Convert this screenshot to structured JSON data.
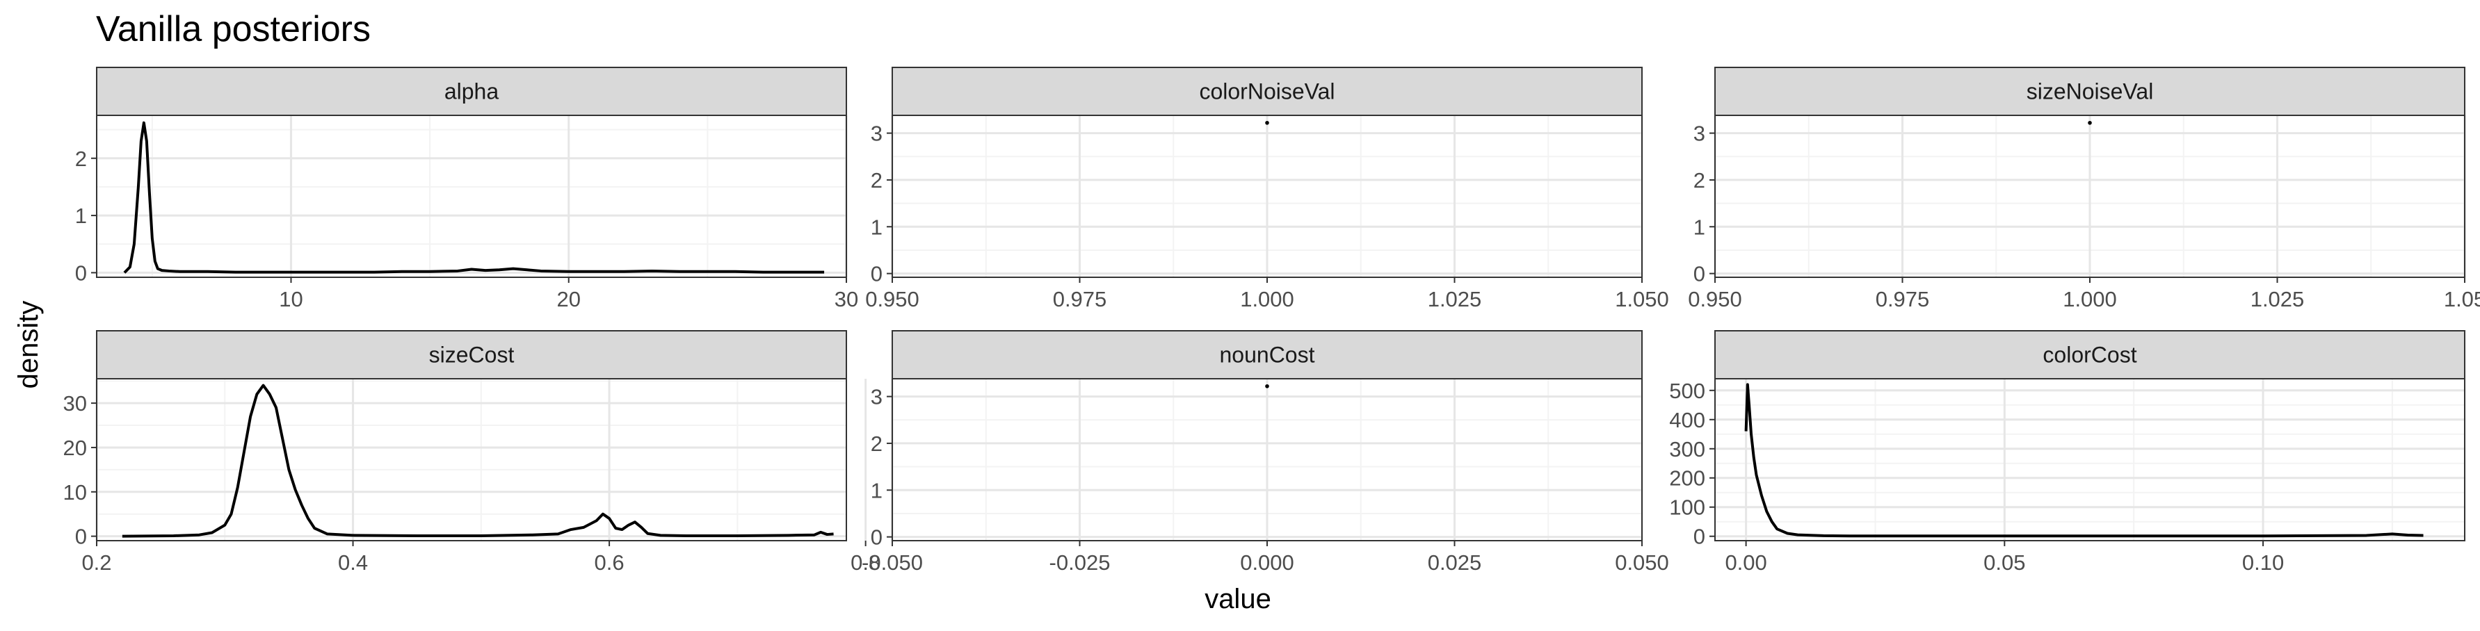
{
  "chart_data": {
    "type": "line",
    "title": "Vanilla posteriors",
    "xlabel": "value",
    "ylabel": "density",
    "grid": true,
    "legend": "none",
    "colors": {
      "line": "#000000",
      "strip_fill": "#d9d9d9",
      "strip_border": "#333333",
      "grid_major": "#e6e6e6",
      "grid_minor": "#f3f3f3"
    },
    "panels": [
      {
        "label": "alpha",
        "xlim": [
          3.0,
          30.0
        ],
        "ylim": [
          -0.08,
          2.75
        ],
        "xticks": [
          10,
          20,
          30
        ],
        "xtick_labels": [
          "10",
          "20",
          "30"
        ],
        "yticks": [
          0,
          1,
          2
        ],
        "ytick_labels": [
          "0",
          "1",
          "2"
        ],
        "series": [
          {
            "x": [
              4.0,
              4.2,
              4.35,
              4.5,
              4.6,
              4.7,
              4.8,
              4.9,
              5.0,
              5.1,
              5.2,
              5.35,
              5.6,
              6.0,
              7.0,
              8.0,
              9.0,
              10.0,
              11.0,
              12.0,
              13.0,
              14.0,
              15.0,
              16.0,
              16.5,
              17.0,
              17.5,
              18.0,
              18.5,
              19.0,
              20.0,
              21.0,
              22.0,
              23.0,
              24.0,
              25.0,
              26.0,
              27.0,
              28.0,
              29.0,
              29.2
            ],
            "y": [
              0.0,
              0.1,
              0.5,
              1.5,
              2.3,
              2.62,
              2.3,
              1.4,
              0.6,
              0.2,
              0.07,
              0.04,
              0.03,
              0.02,
              0.02,
              0.01,
              0.01,
              0.01,
              0.01,
              0.01,
              0.01,
              0.02,
              0.02,
              0.03,
              0.06,
              0.04,
              0.05,
              0.07,
              0.05,
              0.03,
              0.02,
              0.02,
              0.02,
              0.03,
              0.02,
              0.02,
              0.02,
              0.01,
              0.01,
              0.01,
              0.01
            ]
          }
        ]
      },
      {
        "label": "colorNoiseVal",
        "xlim": [
          0.95,
          1.05
        ],
        "ylim": [
          -0.08,
          3.38
        ],
        "xticks": [
          0.95,
          0.975,
          1.0,
          1.025,
          1.05
        ],
        "xtick_labels": [
          "0.950",
          "0.975",
          "1.000",
          "1.025",
          "1.050"
        ],
        "yticks": [
          0,
          1,
          2,
          3
        ],
        "ytick_labels": [
          "0",
          "1",
          "2",
          "3"
        ],
        "points": [
          {
            "x": 1.0,
            "y": 3.22
          }
        ]
      },
      {
        "label": "sizeNoiseVal",
        "xlim": [
          0.95,
          1.05
        ],
        "ylim": [
          -0.08,
          3.38
        ],
        "xticks": [
          0.95,
          0.975,
          1.0,
          1.025,
          1.05
        ],
        "xtick_labels": [
          "0.950",
          "0.975",
          "1.000",
          "1.025",
          "1.05"
        ],
        "yticks": [
          0,
          1,
          2,
          3
        ],
        "ytick_labels": [
          "0",
          "1",
          "2",
          "3"
        ],
        "points": [
          {
            "x": 1.0,
            "y": 3.22
          }
        ]
      },
      {
        "label": "sizeCost",
        "xlim": [
          0.2,
          0.785
        ],
        "ylim": [
          -1.0,
          35.5
        ],
        "xticks": [
          0.2,
          0.4,
          0.6,
          0.8
        ],
        "xtick_labels": [
          "0.2",
          "0.4",
          "0.6",
          "0.8"
        ],
        "yticks": [
          0,
          10,
          20,
          30
        ],
        "ytick_labels": [
          "0",
          "10",
          "20",
          "30"
        ],
        "series": [
          {
            "x": [
              0.22,
              0.26,
              0.28,
              0.29,
              0.3,
              0.305,
              0.31,
              0.315,
              0.32,
              0.325,
              0.33,
              0.335,
              0.34,
              0.345,
              0.35,
              0.355,
              0.36,
              0.365,
              0.37,
              0.38,
              0.4,
              0.45,
              0.5,
              0.54,
              0.56,
              0.57,
              0.58,
              0.59,
              0.595,
              0.6,
              0.605,
              0.61,
              0.615,
              0.62,
              0.625,
              0.63,
              0.64,
              0.66,
              0.7,
              0.74,
              0.76,
              0.765,
              0.77,
              0.775
            ],
            "y": [
              0.0,
              0.1,
              0.3,
              0.8,
              2.5,
              5.0,
              11.0,
              19.0,
              27.0,
              32.0,
              34.0,
              32.0,
              29.0,
              22.0,
              15.0,
              10.5,
              7.0,
              4.0,
              1.8,
              0.5,
              0.2,
              0.1,
              0.1,
              0.3,
              0.5,
              1.5,
              2.0,
              3.5,
              5.0,
              4.0,
              1.8,
              1.5,
              2.5,
              3.2,
              2.0,
              0.6,
              0.2,
              0.1,
              0.1,
              0.2,
              0.3,
              0.9,
              0.4,
              0.5
            ]
          }
        ]
      },
      {
        "label": "nounCost",
        "xlim": [
          -0.05,
          0.05
        ],
        "ylim": [
          -0.08,
          3.38
        ],
        "xticks": [
          -0.05,
          -0.025,
          0.0,
          0.025,
          0.05
        ],
        "xtick_labels": [
          "-0.050",
          "-0.025",
          "0.000",
          "0.025",
          "0.050"
        ],
        "yticks": [
          0,
          1,
          2,
          3
        ],
        "ytick_labels": [
          "0",
          "1",
          "2",
          "3"
        ],
        "points": [
          {
            "x": 0.0,
            "y": 3.22
          }
        ]
      },
      {
        "label": "colorCost",
        "xlim": [
          -0.006,
          0.139
        ],
        "ylim": [
          -15,
          540
        ],
        "xticks": [
          0.0,
          0.05,
          0.1
        ],
        "xtick_labels": [
          "0.00",
          "0.05",
          "0.10"
        ],
        "yticks": [
          0,
          100,
          200,
          300,
          400,
          500
        ],
        "ytick_labels": [
          "0",
          "100",
          "200",
          "300",
          "400",
          "500"
        ],
        "series": [
          {
            "x": [
              0.0,
              0.0003,
              0.0006,
              0.001,
              0.0015,
              0.002,
              0.003,
              0.004,
              0.005,
              0.006,
              0.008,
              0.01,
              0.015,
              0.02,
              0.04,
              0.06,
              0.08,
              0.1,
              0.11,
              0.12,
              0.125,
              0.128,
              0.131
            ],
            "y": [
              360,
              520,
              450,
              350,
              270,
              210,
              140,
              85,
              50,
              25,
              10,
              5,
              2,
              1,
              1,
              1,
              1,
              1,
              2,
              3,
              8,
              4,
              3
            ]
          }
        ]
      }
    ]
  }
}
